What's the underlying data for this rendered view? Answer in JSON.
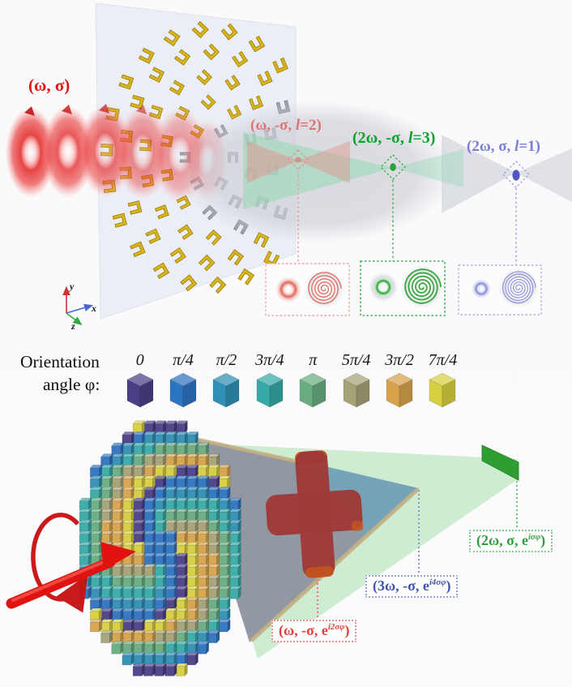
{
  "panel_top": {
    "input_label": "(ω, σ)",
    "beam_labels": [
      {
        "pre": "(ω, -σ, ",
        "var": "l",
        "post": "=2)",
        "color": "#e06868"
      },
      {
        "pre": "(2ω, -σ, ",
        "var": "l",
        "post": "=3)",
        "color": "#0ba32a"
      },
      {
        "pre": "(2ω, σ, ",
        "var": "l",
        "post": "=1)",
        "color": "#797ed4"
      }
    ],
    "inset_colors": {
      "red": "#e05545",
      "green": "#1f9e26",
      "blue": "#7b82d8"
    },
    "axes": {
      "x": "x",
      "y": "y",
      "z": "z"
    }
  },
  "panel_bottom": {
    "legend_title_line1": "Orientation",
    "legend_title_line2": "angle φ:",
    "legend_items": [
      {
        "label": "0",
        "color": "#4a3f85"
      },
      {
        "label": "π/4",
        "color": "#2d74c0"
      },
      {
        "label": "π/2",
        "color": "#2f8fb4"
      },
      {
        "label": "3π/4",
        "color": "#36aaa6"
      },
      {
        "label": "π",
        "color": "#68ac80"
      },
      {
        "label": "5π/4",
        "color": "#a5a276"
      },
      {
        "label": "3π/2",
        "color": "#d6a34c"
      },
      {
        "label": "7π/4",
        "color": "#d6cf3f"
      }
    ],
    "beam_labels": [
      {
        "pre": "(ω, -σ, e",
        "sup": "i2σφ",
        "post": ")",
        "color": "#e23c3c",
        "border": "#ec9090"
      },
      {
        "pre": "(3ω, -σ, e",
        "sup": "i4σφ",
        "post": ")",
        "color": "#4153ae",
        "border": "#96a0d8"
      },
      {
        "pre": "(2ω, σ, e",
        "sup": "iσφ",
        "post": ")",
        "color": "#2f9e3a",
        "border": "#7cc98a"
      }
    ]
  }
}
